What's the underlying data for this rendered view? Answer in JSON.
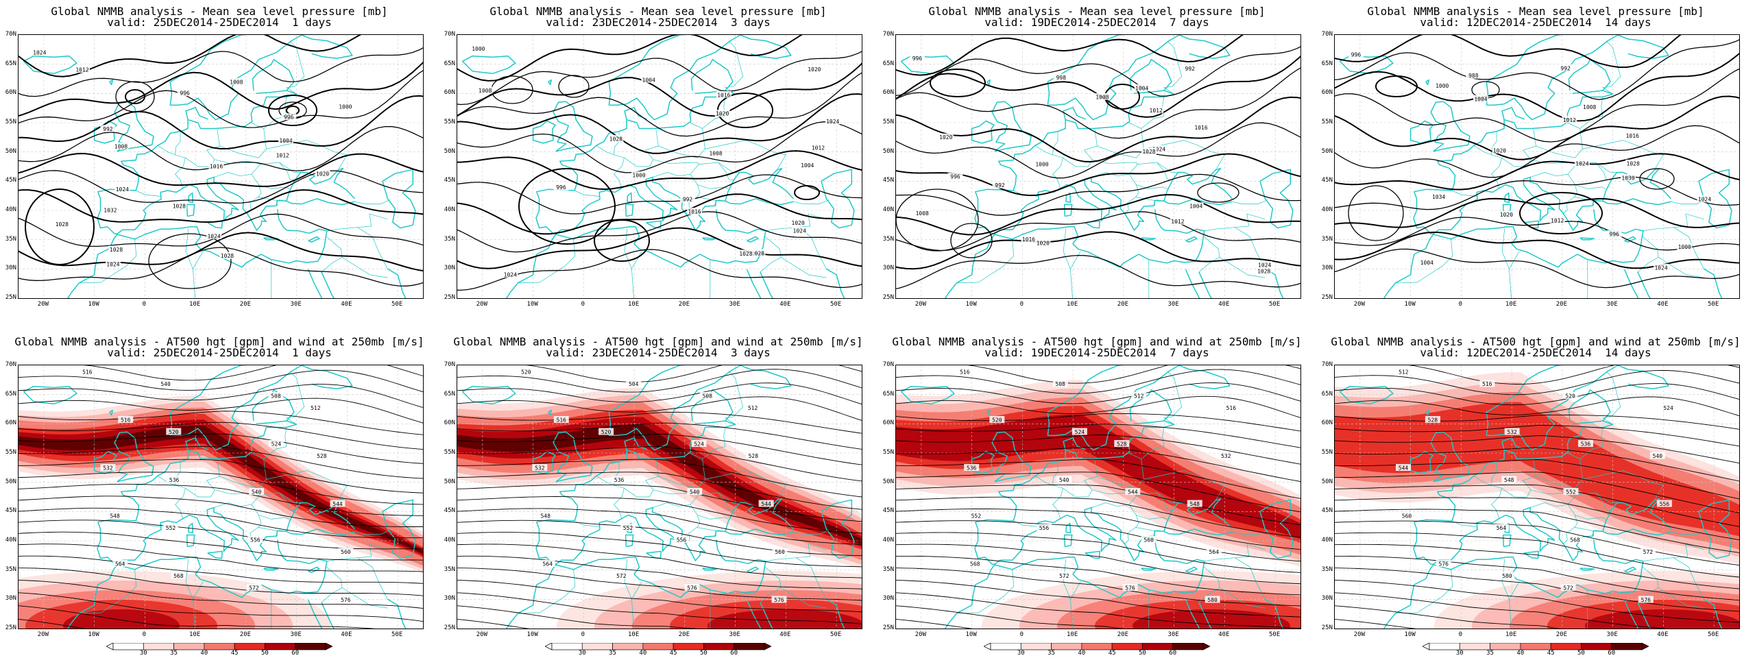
{
  "panels": [
    {
      "title": "Global NMMB analysis - Mean sea level pressure [mb]",
      "subtitle": "valid: 25DEC2014-25DEC2014  1 days"
    },
    {
      "title": "Global NMMB analysis - Mean sea level pressure [mb]",
      "subtitle": "valid: 23DEC2014-25DEC2014  3 days"
    },
    {
      "title": "Global NMMB analysis - Mean sea level pressure [mb]",
      "subtitle": "valid: 19DEC2014-25DEC2014  7 days"
    },
    {
      "title": "Global NMMB analysis - Mean sea level pressure [mb]",
      "subtitle": "valid: 12DEC2014-25DEC2014  14 days"
    },
    {
      "title": "Global NMMB analysis - AT500 hgt [gpm] and wind at 250mb [m/s]",
      "subtitle": "valid: 25DEC2014-25DEC2014  1 days"
    },
    {
      "title": "Global NMMB analysis - AT500 hgt [gpm] and wind at 250mb [m/s]",
      "subtitle": "valid: 23DEC2014-25DEC2014  3 days"
    },
    {
      "title": "Global NMMB analysis - AT500 hgt [gpm] and wind at 250mb [m/s]",
      "subtitle": "valid: 19DEC2014-25DEC2014  7 days"
    },
    {
      "title": "Global NMMB analysis - AT500 hgt [gpm] and wind at 250mb [m/s]",
      "subtitle": "valid: 12DEC2014-25DEC2014  14 days"
    }
  ],
  "lat_labels": [
    "70N",
    "65N",
    "60N",
    "55N",
    "50N",
    "45N",
    "40N",
    "35N",
    "30N",
    "25N"
  ],
  "lon_labels": [
    "20W",
    "10W",
    "0",
    "10E",
    "20E",
    "30E",
    "40E",
    "50E"
  ],
  "mslp_contour_labels": [
    [
      "1024",
      "1012",
      "1008",
      "996",
      "1000",
      "996",
      "992",
      "1004",
      "1008",
      "1012",
      "1016",
      "1020",
      "1024",
      "1028",
      "1032",
      "1028",
      "1024",
      "1028",
      "1028",
      "1024"
    ],
    [
      "1000",
      "1020",
      "1004",
      "1008",
      "1016",
      "1020",
      "1024",
      "1028",
      "1012",
      "1008",
      "1004",
      "1000",
      "996",
      "992",
      "1016",
      "1020",
      "1024",
      "1028",
      "1028",
      "1024"
    ],
    [
      "996",
      "992",
      "998",
      "1004",
      "1008",
      "1012",
      "1016",
      "1020",
      "1024",
      "1028",
      "1000",
      "996",
      "992",
      "1004",
      "1008",
      "1012",
      "1016",
      "1020",
      "1024",
      "1028"
    ],
    [
      "996",
      "992",
      "988",
      "1000",
      "1004",
      "1008",
      "1012",
      "1016",
      "1020",
      "1024",
      "1028",
      "1030",
      "1034",
      "1024",
      "1020",
      "1012",
      "996",
      "1000",
      "1004",
      "1024"
    ]
  ],
  "hgt_contour_labels": [
    [
      "516",
      "540",
      "508",
      "512",
      "516",
      "520",
      "524",
      "528",
      "532",
      "536",
      "540",
      "544",
      "548",
      "552",
      "556",
      "560",
      "564",
      "568",
      "572",
      "576"
    ],
    [
      "520",
      "504",
      "508",
      "512",
      "516",
      "520",
      "524",
      "528",
      "532",
      "536",
      "540",
      "544",
      "548",
      "552",
      "556",
      "560",
      "564",
      "572",
      "576",
      "576"
    ],
    [
      "516",
      "508",
      "512",
      "516",
      "520",
      "524",
      "528",
      "532",
      "536",
      "540",
      "544",
      "548",
      "552",
      "556",
      "560",
      "564",
      "568",
      "572",
      "576",
      "580"
    ],
    [
      "512",
      "516",
      "520",
      "524",
      "528",
      "532",
      "536",
      "540",
      "544",
      "548",
      "552",
      "556",
      "560",
      "564",
      "568",
      "572",
      "576",
      "580",
      "572",
      "576"
    ]
  ],
  "colorbar": {
    "labels": [
      "30",
      "35",
      "40",
      "45",
      "50",
      "60"
    ],
    "colors": [
      "#ffffff",
      "#fde0dc",
      "#fbb4ae",
      "#f4786e",
      "#e52a22",
      "#b0000b",
      "#5a0000"
    ]
  },
  "colors": {
    "coastline": "#1ec8c8",
    "contour": "#000000",
    "grid": "#c8c8c8"
  }
}
